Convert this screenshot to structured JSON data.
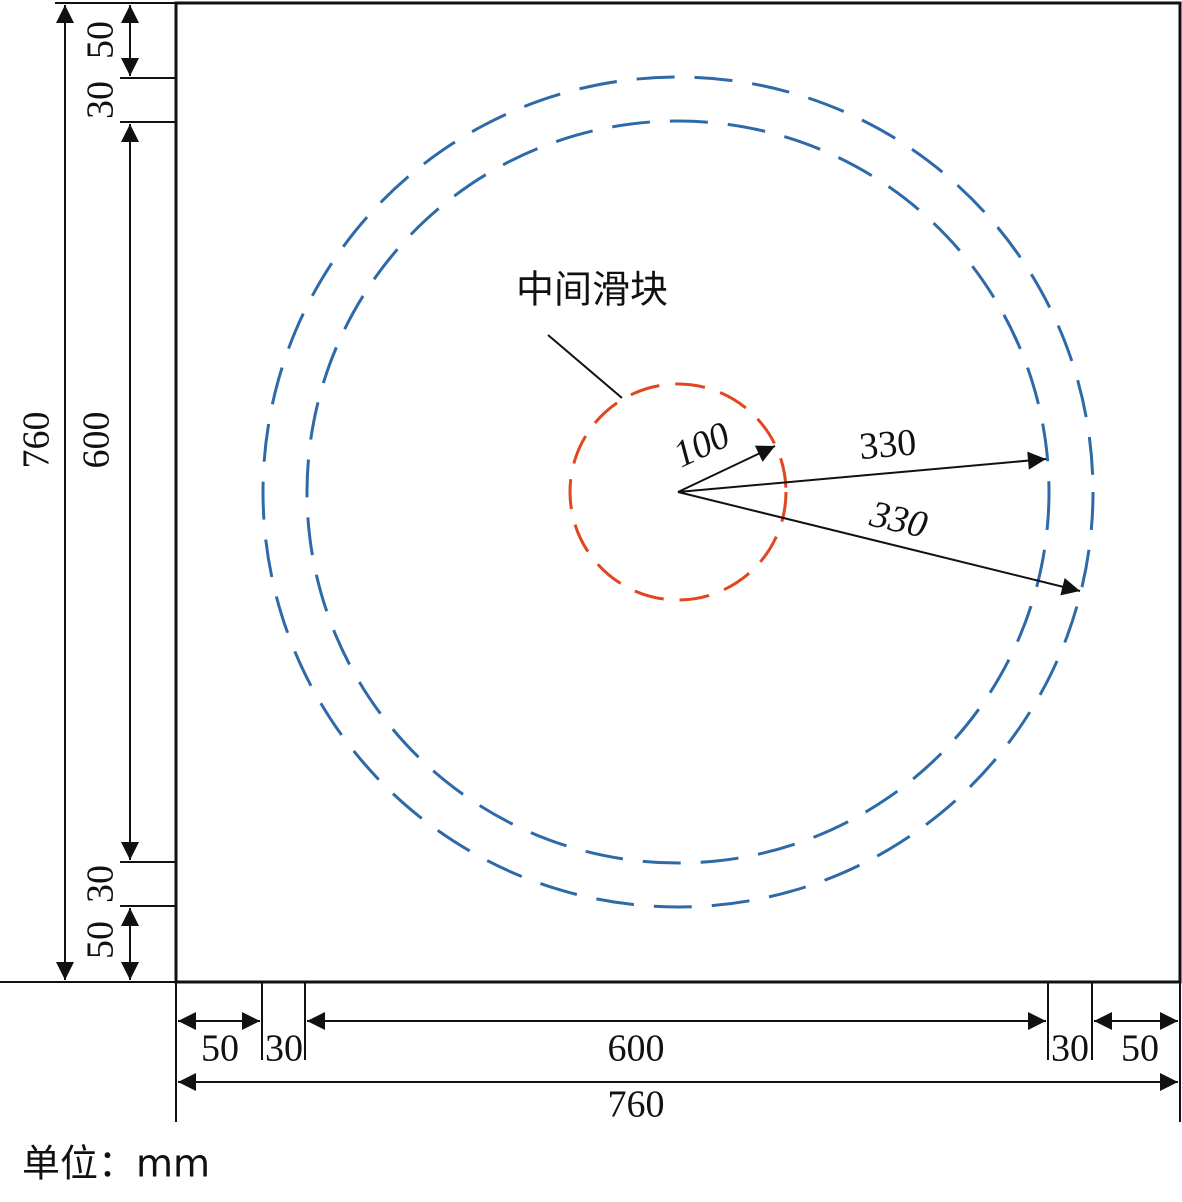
{
  "annotation": "中间滑块",
  "unit_note": "单位：mm",
  "radii": [
    100,
    330,
    330
  ],
  "left_dimensions": {
    "parts": [
      50,
      30,
      600,
      30,
      50
    ],
    "total": 760
  },
  "bottom_dimensions": {
    "parts": [
      50,
      30,
      600,
      30,
      50
    ],
    "total": 760
  }
}
